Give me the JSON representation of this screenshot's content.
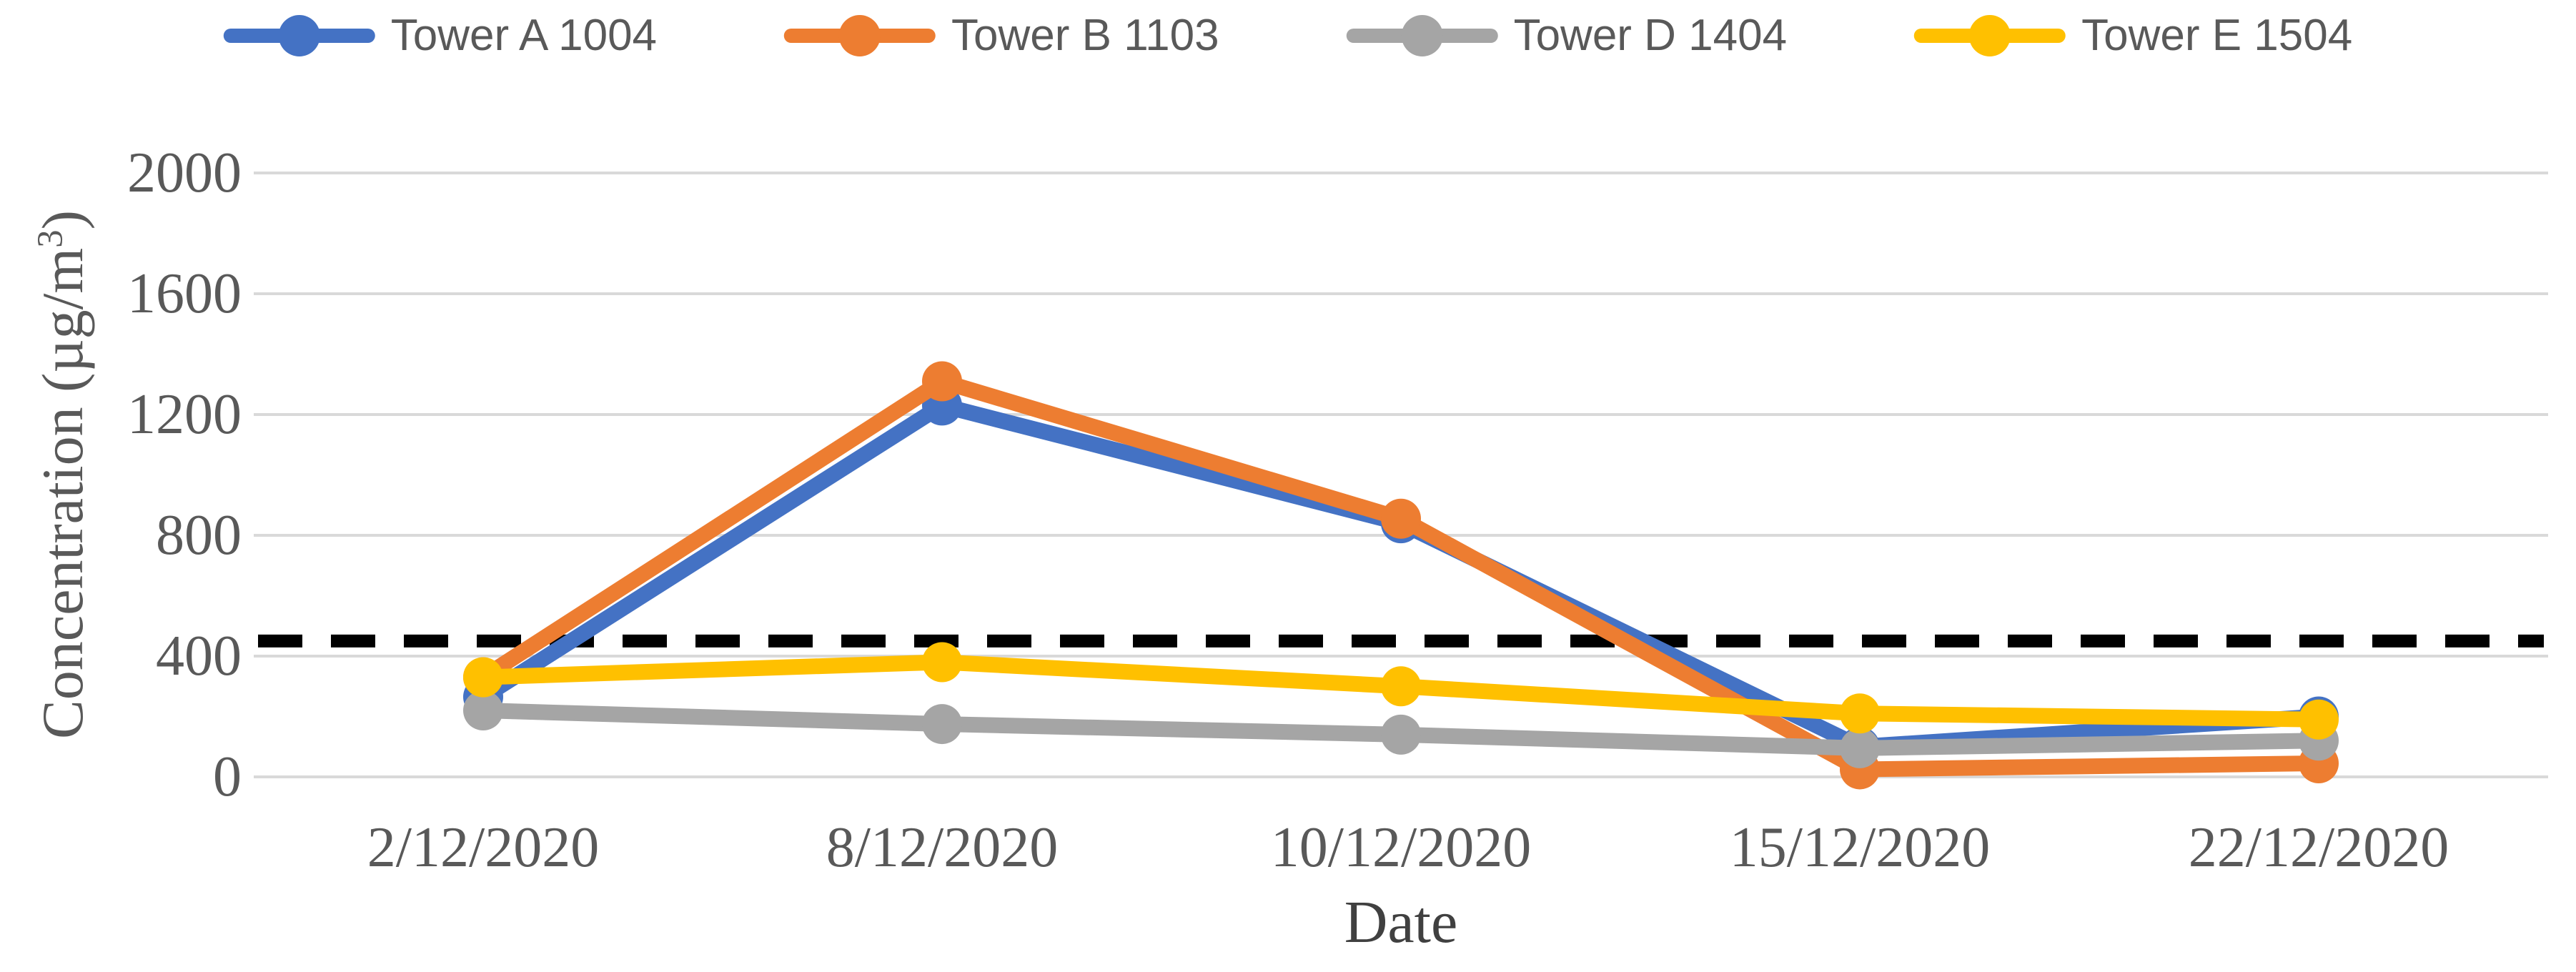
{
  "legend": {
    "items": [
      {
        "label": "Tower A 1004",
        "color": "#4472C4"
      },
      {
        "label": "Tower B 1103",
        "color": "#ED7D31"
      },
      {
        "label": "Tower D 1404",
        "color": "#A5A5A5"
      },
      {
        "label": "Tower E 1504",
        "color": "#FFC000"
      }
    ]
  },
  "y_axis": {
    "title_prefix": "Concentration (µg/m",
    "title_sup": "3",
    "title_suffix": ")",
    "ticks": [
      "2000",
      "1600",
      "1200",
      "800",
      "400",
      "0"
    ]
  },
  "x_axis": {
    "title": "Date",
    "labels": [
      "2/12/2020",
      "8/12/2020",
      "10/12/2020",
      "15/12/2020",
      "22/12/2020"
    ]
  },
  "colors": {
    "series_blue": "#4472C4",
    "series_orange": "#ED7D31",
    "series_gray": "#A5A5A5",
    "series_yellow": "#FFC000",
    "gridline": "#D9D9D9",
    "threshold": "#000000",
    "tick_text": "#595959"
  },
  "chart_data": {
    "type": "line",
    "title": "",
    "xlabel": "Date",
    "ylabel": "Concentration (µg/m³)",
    "ylim": [
      0,
      2000
    ],
    "y_tick_step": 400,
    "grid": "horizontal",
    "legend_position": "top",
    "categories": [
      "2/12/2020",
      "8/12/2020",
      "10/12/2020",
      "15/12/2020",
      "22/12/2020"
    ],
    "series": [
      {
        "name": "Tower A 1004",
        "color": "#4472C4",
        "values": [
          265,
          1230,
          840,
          100,
          200
        ]
      },
      {
        "name": "Tower B 1103",
        "color": "#ED7D31",
        "values": [
          330,
          1310,
          855,
          25,
          45
        ]
      },
      {
        "name": "Tower D 1404",
        "color": "#A5A5A5",
        "values": [
          220,
          175,
          140,
          95,
          120
        ]
      },
      {
        "name": "Tower E 1504",
        "color": "#FFC000",
        "values": [
          330,
          380,
          300,
          210,
          190
        ]
      }
    ],
    "threshold_line": {
      "value": 450,
      "style": "dashed",
      "color": "#000000"
    }
  }
}
